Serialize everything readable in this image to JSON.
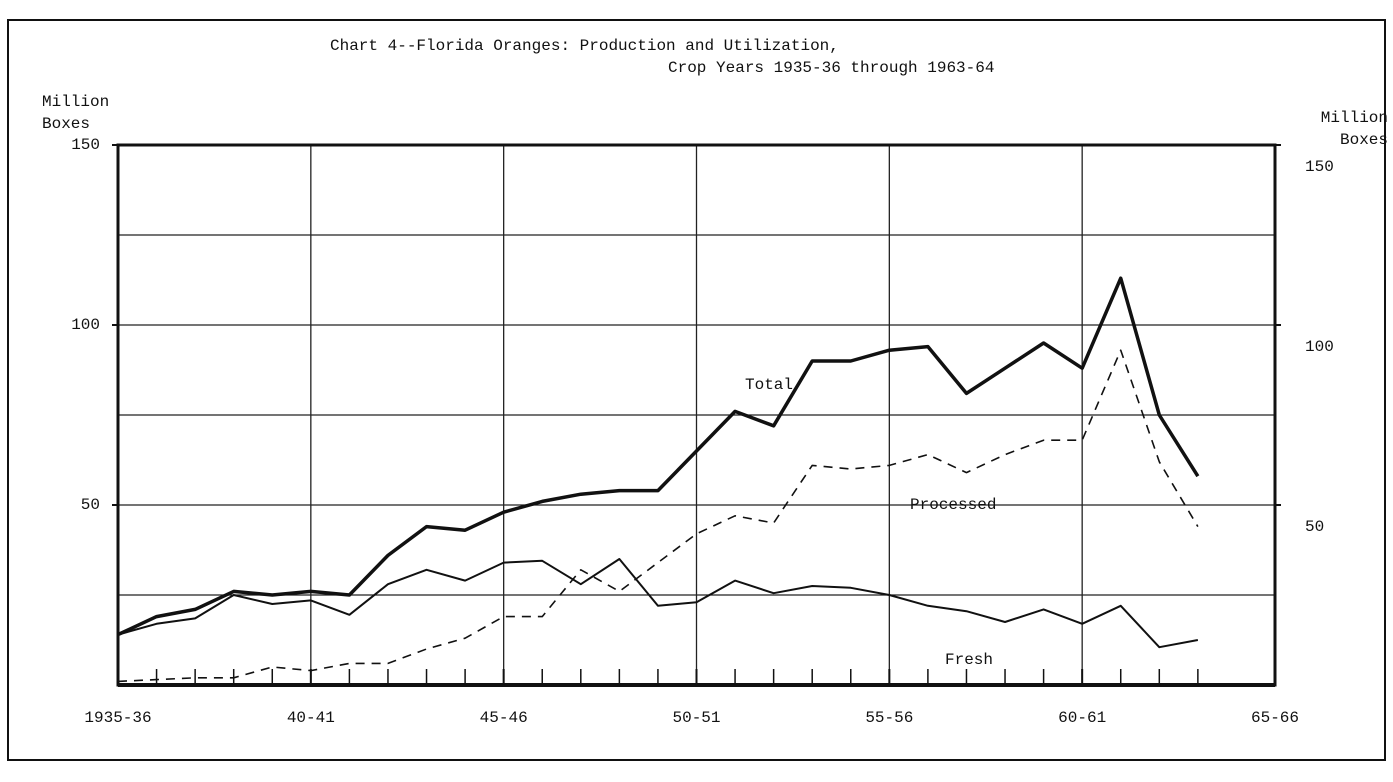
{
  "chart_data": {
    "type": "line",
    "title": [
      "Chart 4--Florida Oranges:  Production and Utilization,",
      "Crop Years 1935-36 through 1963-64"
    ],
    "ylabel": [
      "Million",
      "Boxes"
    ],
    "y2label": [
      "Million",
      "Boxes"
    ],
    "x": [
      1935,
      1936,
      1937,
      1938,
      1939,
      1940,
      1941,
      1942,
      1943,
      1944,
      1945,
      1946,
      1947,
      1948,
      1949,
      1950,
      1951,
      1952,
      1953,
      1954,
      1955,
      1956,
      1957,
      1958,
      1959,
      1960,
      1961,
      1962,
      1963
    ],
    "xlim": [
      1935,
      1965
    ],
    "xticks": [
      {
        "value": 1935,
        "label": "1935-36"
      },
      {
        "value": 1940,
        "label": "40-41"
      },
      {
        "value": 1945,
        "label": "45-46"
      },
      {
        "value": 1950,
        "label": "50-51"
      },
      {
        "value": 1955,
        "label": "55-56"
      },
      {
        "value": 1960,
        "label": "60-61"
      },
      {
        "value": 1965,
        "label": "65-66"
      }
    ],
    "ylim": [
      0,
      150
    ],
    "yticks": [
      50,
      100,
      150
    ],
    "y2lim": [
      0,
      150
    ],
    "y2ticks": [
      50,
      100,
      150
    ],
    "ygrid": [
      25,
      50,
      75,
      100,
      125
    ],
    "grid": true,
    "series": [
      {
        "name": "Total",
        "color": "#111111",
        "style": "bold",
        "values": [
          14,
          19,
          21,
          26,
          25,
          26,
          25,
          36,
          44,
          43,
          48,
          51,
          53,
          54,
          54,
          65,
          76,
          72,
          90,
          90,
          93,
          94,
          81,
          88,
          95,
          88,
          113,
          75,
          58
        ]
      },
      {
        "name": "Processed",
        "color": "#111111",
        "style": "dashed",
        "values": [
          1,
          1.5,
          2,
          2,
          5,
          4,
          6,
          6,
          10,
          13,
          19,
          19,
          32,
          26,
          34,
          42,
          47,
          45,
          61,
          60,
          61,
          64,
          59,
          64,
          68,
          68,
          93,
          62,
          44
        ]
      },
      {
        "name": "Fresh",
        "color": "#111111",
        "style": "solid",
        "values": [
          14,
          17,
          18.5,
          25,
          22.5,
          23.5,
          19.5,
          28,
          32,
          29,
          34,
          34.5,
          28,
          35,
          22,
          23,
          29,
          25.5,
          27.5,
          27,
          25,
          22,
          20.5,
          17.5,
          21,
          17,
          22,
          10.5,
          12.5
        ]
      }
    ]
  }
}
